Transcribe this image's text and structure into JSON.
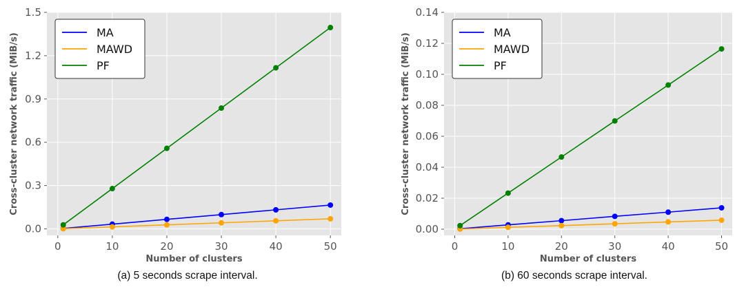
{
  "chart_data": [
    {
      "type": "line",
      "caption": "(a) 5 seconds scrape interval.",
      "xlabel": "Number of clusters",
      "ylabel": "Cross-cluster network traffic (MiB/s)",
      "xlim": [
        -2,
        52
      ],
      "ylim": [
        -0.045,
        1.5
      ],
      "xticks": [
        0,
        10,
        20,
        30,
        40,
        50
      ],
      "yticks": [
        0.0,
        0.3,
        0.6,
        0.9,
        1.2,
        1.5
      ],
      "ytick_labels": [
        "0.0",
        "0.3",
        "0.6",
        "0.9",
        "1.2",
        "1.5"
      ],
      "grid": true,
      "legend_position": "top-left",
      "x": [
        1,
        10,
        20,
        30,
        40,
        50
      ],
      "series": [
        {
          "name": "MA",
          "color": "#0000ff",
          "values": [
            0.003,
            0.033,
            0.066,
            0.099,
            0.132,
            0.165
          ]
        },
        {
          "name": "MAWD",
          "color": "#ffa500",
          "values": [
            0.001,
            0.014,
            0.028,
            0.042,
            0.056,
            0.07
          ]
        },
        {
          "name": "PF",
          "color": "#008000",
          "values": [
            0.028,
            0.279,
            0.558,
            0.837,
            1.116,
            1.395
          ]
        }
      ]
    },
    {
      "type": "line",
      "caption": "(b) 60 seconds scrape interval.",
      "xlabel": "Number of clusters",
      "ylabel": "Cross-cluster network traffic (MiB/s)",
      "xlim": [
        -2,
        52
      ],
      "ylim": [
        -0.004,
        0.14
      ],
      "xticks": [
        0,
        10,
        20,
        30,
        40,
        50
      ],
      "yticks": [
        0.0,
        0.02,
        0.04,
        0.06,
        0.08,
        0.1,
        0.12,
        0.14
      ],
      "ytick_labels": [
        "0.00",
        "0.02",
        "0.04",
        "0.06",
        "0.08",
        "0.10",
        "0.12",
        "0.14"
      ],
      "grid": true,
      "legend_position": "top-left",
      "x": [
        1,
        10,
        20,
        30,
        40,
        50
      ],
      "series": [
        {
          "name": "MA",
          "color": "#0000ff",
          "values": [
            0.0003,
            0.0028,
            0.0055,
            0.0083,
            0.011,
            0.0138
          ]
        },
        {
          "name": "MAWD",
          "color": "#ffa500",
          "values": [
            0.0001,
            0.0012,
            0.0023,
            0.0035,
            0.0047,
            0.0058
          ]
        },
        {
          "name": "PF",
          "color": "#008000",
          "values": [
            0.0023,
            0.0233,
            0.0466,
            0.0699,
            0.0931,
            0.1164
          ]
        }
      ]
    }
  ]
}
